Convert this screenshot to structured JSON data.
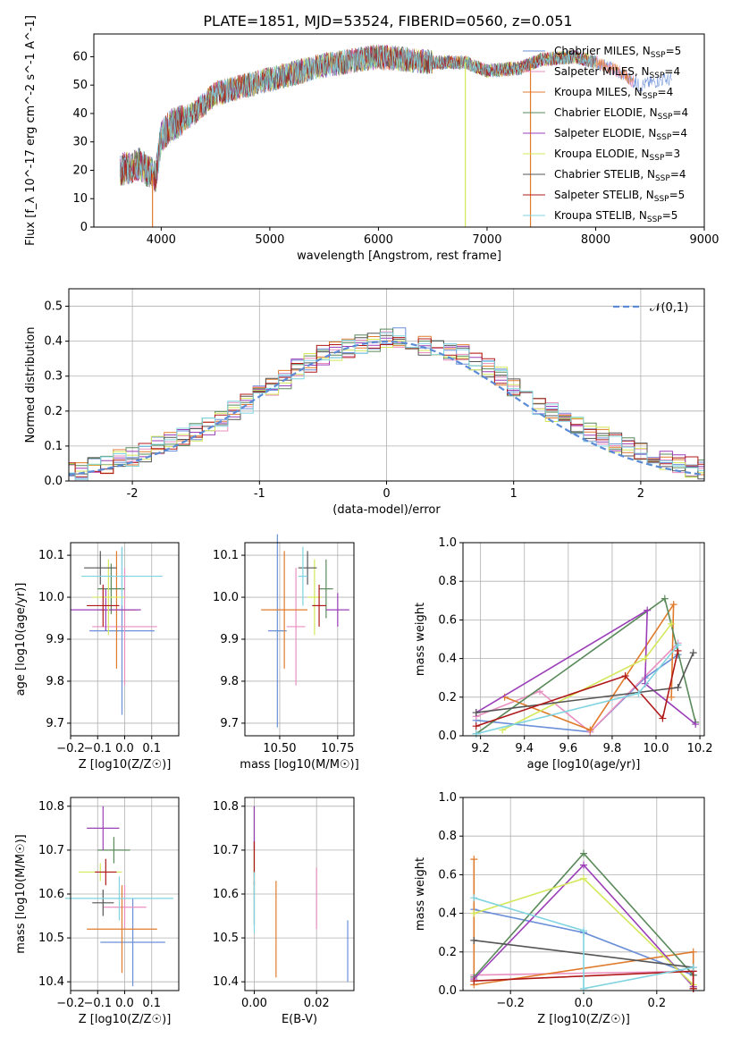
{
  "title": "PLATE=1851, MJD=53524, FIBERID=0560, z=0.051",
  "colors": [
    "#6b8fd8",
    "#e98fc0",
    "#e07b2c",
    "#5a8a5a",
    "#9b3fb8",
    "#d4e85a",
    "#555555",
    "#b01818",
    "#7fd4e0"
  ],
  "chart_data": [
    {
      "type": "line",
      "name": "spectrum",
      "xlabel": "wavelength [Angstrom, rest frame]",
      "ylabel": "Flux [f_λ 10^-17 erg cm^-2 s^-1 A^-1]",
      "xlim": [
        3380,
        9000
      ],
      "ylim": [
        0,
        68
      ],
      "xticks": [
        4000,
        5000,
        6000,
        7000,
        8000,
        9000
      ],
      "yticks": [
        0,
        10,
        20,
        30,
        40,
        50,
        60
      ],
      "legend": [
        "Chabrier MILES, N_SSP=5",
        "Salpeter MILES, N_SSP=4",
        "Kroupa MILES, N_SSP=4",
        "Chabrier ELODIE, N_SSP=4",
        "Salpeter ELODIE, N_SSP=4",
        "Kroupa ELODIE, N_SSP=3",
        "Chabrier STELIB, N_SSP=4",
        "Salpeter STELIB, N_SSP=5",
        "Kroupa STELIB, N_SSP=5"
      ],
      "continuum": {
        "x": [
          3620,
          3800,
          3950,
          4000,
          4100,
          4300,
          4500,
          5000,
          5500,
          6000,
          6500,
          6800,
          7000,
          7300,
          7500,
          7800,
          8000,
          8200,
          8400,
          8600,
          8700
        ],
        "y": [
          20,
          22,
          18,
          32,
          36,
          40,
          47,
          52,
          57,
          60,
          58,
          58,
          55,
          56,
          59,
          60,
          58,
          55,
          50,
          52,
          52
        ]
      },
      "dips": [
        [
          3920,
          0
        ],
        [
          6800,
          0
        ],
        [
          7400,
          0
        ]
      ]
    },
    {
      "type": "bar",
      "name": "residuals",
      "xlabel": "(data-model)/error",
      "ylabel": "Normed distribution",
      "xlim": [
        -2.5,
        2.5
      ],
      "ylim": [
        0,
        0.55
      ],
      "xticks": [
        -2,
        -1,
        0,
        1,
        2
      ],
      "yticks": [
        0.0,
        0.1,
        0.2,
        0.3,
        0.4,
        0.5
      ],
      "legend": [
        "𝒩(0,1)"
      ],
      "bin_width": 0.1,
      "base": [
        0.03,
        0.03,
        0.04,
        0.05,
        0.06,
        0.07,
        0.08,
        0.1,
        0.11,
        0.13,
        0.14,
        0.16,
        0.17,
        0.2,
        0.22,
        0.25,
        0.27,
        0.29,
        0.32,
        0.34,
        0.36,
        0.37,
        0.38,
        0.39,
        0.4,
        0.41,
        0.41,
        0.4,
        0.39,
        0.38,
        0.37,
        0.36,
        0.34,
        0.32,
        0.3,
        0.27,
        0.25,
        0.22,
        0.2,
        0.17,
        0.16,
        0.14,
        0.13,
        0.11,
        0.1,
        0.08,
        0.07,
        0.06,
        0.05,
        0.04,
        0.03
      ]
    },
    {
      "type": "scatter",
      "name": "age-vs-Z",
      "xlabel": "Z [log10(Z/Z☉)]",
      "ylabel": "age [log10(age/yr)]",
      "xlim": [
        -0.2,
        0.2
      ],
      "ylim": [
        9.67,
        10.13
      ],
      "xticks": [
        -0.2,
        -0.1,
        0.0,
        0.1
      ],
      "yticks": [
        9.7,
        9.8,
        9.9,
        10.0,
        10.1
      ],
      "points": [
        [
          -0.01,
          9.92,
          0.12,
          0.2
        ],
        [
          0.0,
          9.93,
          0.12,
          0.14
        ],
        [
          -0.03,
          9.97,
          0.07,
          0.14
        ],
        [
          -0.05,
          10.02,
          0.05,
          0.06
        ],
        [
          -0.07,
          9.97,
          0.13,
          0.05
        ],
        [
          -0.06,
          10.0,
          0.06,
          0.09
        ],
        [
          -0.09,
          10.07,
          0.06,
          0.04
        ],
        [
          -0.08,
          9.98,
          0.06,
          0.05
        ],
        [
          -0.01,
          10.05,
          0.15,
          0.07
        ]
      ]
    },
    {
      "type": "scatter",
      "name": "age-vs-mass",
      "xlabel": "mass [log10(M/M☉)]",
      "ylabel": "",
      "xlim": [
        10.35,
        10.82
      ],
      "ylim": [
        9.67,
        10.13
      ],
      "xticks": [
        10.5,
        10.75
      ],
      "yticks": [
        9.7,
        9.8,
        9.9,
        10.0,
        10.1
      ],
      "points": [
        [
          10.49,
          9.92,
          0.04,
          0.23
        ],
        [
          10.57,
          9.93,
          0.04,
          0.14
        ],
        [
          10.52,
          9.97,
          0.1,
          0.14
        ],
        [
          10.7,
          10.02,
          0.03,
          0.07
        ],
        [
          10.75,
          9.97,
          0.05,
          0.04
        ],
        [
          10.65,
          10.0,
          0.03,
          0.09
        ],
        [
          10.62,
          10.07,
          0.04,
          0.04
        ],
        [
          10.67,
          9.98,
          0.03,
          0.05
        ],
        [
          10.6,
          10.05,
          0.02,
          0.07
        ]
      ]
    },
    {
      "type": "line",
      "name": "weight-vs-age",
      "xlabel": "age [log10(age/yr)]",
      "ylabel": "mass weight",
      "xlim": [
        9.12,
        10.22
      ],
      "ylim": [
        0,
        1
      ],
      "xticks": [
        9.2,
        9.4,
        9.6,
        9.8,
        10.0,
        10.2
      ],
      "yticks": [
        0.0,
        0.2,
        0.4,
        0.6,
        0.8,
        1.0
      ],
      "series": [
        {
          "x": [
            9.18,
            9.7,
            9.95,
            10.1
          ],
          "y": [
            0.08,
            0.02,
            0.3,
            0.42
          ]
        },
        {
          "x": [
            9.18,
            9.47,
            9.7,
            10.1
          ],
          "y": [
            0.1,
            0.23,
            0.02,
            0.48
          ]
        },
        {
          "x": [
            9.31,
            9.7,
            10.08,
            10.07
          ],
          "y": [
            0.2,
            0.03,
            0.68,
            0.2
          ]
        },
        {
          "x": [
            9.18,
            10.04,
            10.18
          ],
          "y": [
            0.01,
            0.71,
            0.07
          ]
        },
        {
          "x": [
            9.18,
            9.96,
            9.95,
            10.18
          ],
          "y": [
            0.12,
            0.65,
            0.27,
            0.06
          ]
        },
        {
          "x": [
            9.3,
            9.95,
            10.07
          ],
          "y": [
            0.03,
            0.4,
            0.58
          ]
        },
        {
          "x": [
            9.18,
            10.1,
            10.17
          ],
          "y": [
            0.12,
            0.25,
            0.43
          ]
        },
        {
          "x": [
            9.18,
            9.86,
            10.03,
            10.1
          ],
          "y": [
            0.05,
            0.31,
            0.09,
            0.44
          ]
        },
        {
          "x": [
            9.18,
            9.92,
            10.1
          ],
          "y": [
            0.01,
            0.22,
            0.47
          ]
        }
      ]
    },
    {
      "type": "scatter",
      "name": "mass-vs-Z",
      "xlabel": "Z [log10(Z/Z☉)]",
      "ylabel": "mass [log10(M/M☉)]",
      "xlim": [
        -0.2,
        0.2
      ],
      "ylim": [
        10.38,
        10.82
      ],
      "xticks": [
        -0.2,
        -0.1,
        0.0,
        0.1
      ],
      "yticks": [
        10.4,
        10.5,
        10.6,
        10.7,
        10.8
      ],
      "points": [
        [
          0.03,
          10.49,
          0.12,
          0.1
        ],
        [
          0.0,
          10.57,
          0.08,
          0.05
        ],
        [
          -0.01,
          10.52,
          0.13,
          0.1
        ],
        [
          -0.04,
          10.7,
          0.06,
          0.03
        ],
        [
          -0.08,
          10.75,
          0.06,
          0.05
        ],
        [
          -0.09,
          10.65,
          0.08,
          0.02
        ],
        [
          -0.08,
          10.58,
          0.04,
          0.03
        ],
        [
          -0.07,
          10.65,
          0.04,
          0.03
        ],
        [
          -0.02,
          10.59,
          0.2,
          0.05
        ]
      ]
    },
    {
      "type": "scatter",
      "name": "mass-vs-EBV",
      "xlabel": "E(B-V)",
      "ylabel": "",
      "xlim": [
        -0.003,
        0.032
      ],
      "ylim": [
        10.38,
        10.82
      ],
      "xticks": [
        0.0,
        0.02
      ],
      "yticks": [
        10.4,
        10.5,
        10.6,
        10.7,
        10.8
      ],
      "points": [
        [
          0.03,
          10.47,
          0,
          0.07
        ],
        [
          0.02,
          10.59,
          0,
          0.07
        ],
        [
          0.007,
          10.52,
          0,
          0.11
        ],
        [
          0.0,
          10.72,
          0,
          0.08
        ],
        [
          0.0,
          10.75,
          0,
          0.05
        ],
        [
          0.0,
          10.65,
          0,
          0.05
        ],
        [
          0.0,
          10.58,
          0,
          0.05
        ],
        [
          0.0,
          10.67,
          0,
          0.05
        ],
        [
          0.0,
          10.58,
          0,
          0.07
        ]
      ]
    },
    {
      "type": "line",
      "name": "weight-vs-Z",
      "xlabel": "Z [log10(Z/Z☉)]",
      "ylabel": "mass weight",
      "xlim": [
        -0.33,
        0.33
      ],
      "ylim": [
        0,
        1
      ],
      "xticks": [
        -0.2,
        0.0,
        0.2
      ],
      "yticks": [
        0.0,
        0.2,
        0.4,
        0.6,
        0.8,
        1.0
      ],
      "series": [
        {
          "x": [
            -0.3,
            0.0,
            0.0,
            0.3
          ],
          "y": [
            0.42,
            0.3,
            0.3,
            0.08
          ]
        },
        {
          "x": [
            -0.3,
            0.3,
            0.3
          ],
          "y": [
            0.08,
            0.1,
            0.02
          ]
        },
        {
          "x": [
            -0.3,
            -0.3,
            0.3,
            0.3
          ],
          "y": [
            0.68,
            0.03,
            0.2,
            0.01
          ]
        },
        {
          "x": [
            -0.3,
            0.0,
            0.3
          ],
          "y": [
            0.07,
            0.71,
            0.08
          ]
        },
        {
          "x": [
            -0.3,
            0.0,
            0.3
          ],
          "y": [
            0.06,
            0.65,
            0.02
          ]
        },
        {
          "x": [
            -0.3,
            0.0,
            0.3
          ],
          "y": [
            0.4,
            0.58,
            0.03
          ]
        },
        {
          "x": [
            -0.3,
            0.3,
            0.3
          ],
          "y": [
            0.26,
            0.12,
            0.01
          ]
        },
        {
          "x": [
            -0.3,
            0.3,
            0.3
          ],
          "y": [
            0.05,
            0.1,
            0.01
          ]
        },
        {
          "x": [
            -0.3,
            0.0,
            0.0,
            0.3
          ],
          "y": [
            0.48,
            0.31,
            0.01,
            0.12
          ]
        }
      ]
    }
  ]
}
